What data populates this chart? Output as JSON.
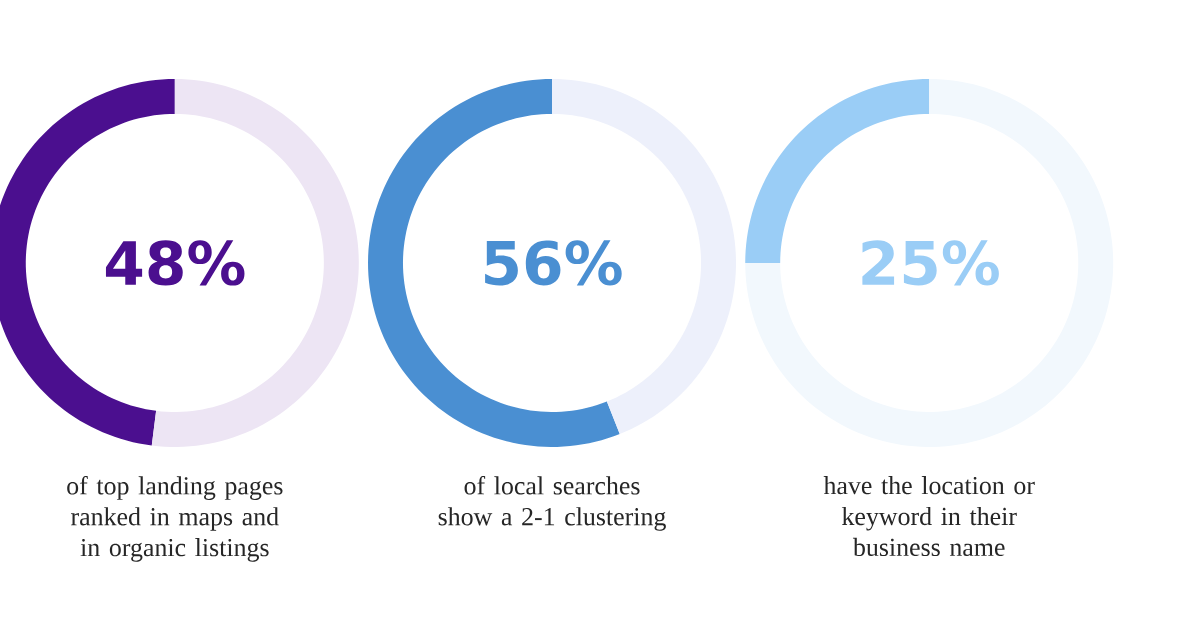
{
  "chart_data": [
    {
      "type": "donut",
      "categories": [
        null,
        null
      ],
      "values": [
        48,
        52
      ],
      "colors": [
        "#4b0f8f",
        "#ede5f4"
      ],
      "title": "48%",
      "annotations": [
        "of top landing pages ranked in maps and in organic listings"
      ]
    },
    {
      "type": "donut",
      "categories": [
        null,
        null
      ],
      "values": [
        56,
        44
      ],
      "colors": [
        "#4a8fd2",
        "#edf0fb"
      ],
      "title": "56%",
      "annotations": [
        "of local searches show a 2-1 clustering"
      ]
    },
    {
      "type": "donut",
      "categories": [
        null,
        null
      ],
      "values": [
        25,
        75
      ],
      "colors": [
        "#9acdf6",
        "#f2f8fd"
      ],
      "title": "25%",
      "annotations": [
        "have the location or keyword in their business name"
      ]
    }
  ]
}
